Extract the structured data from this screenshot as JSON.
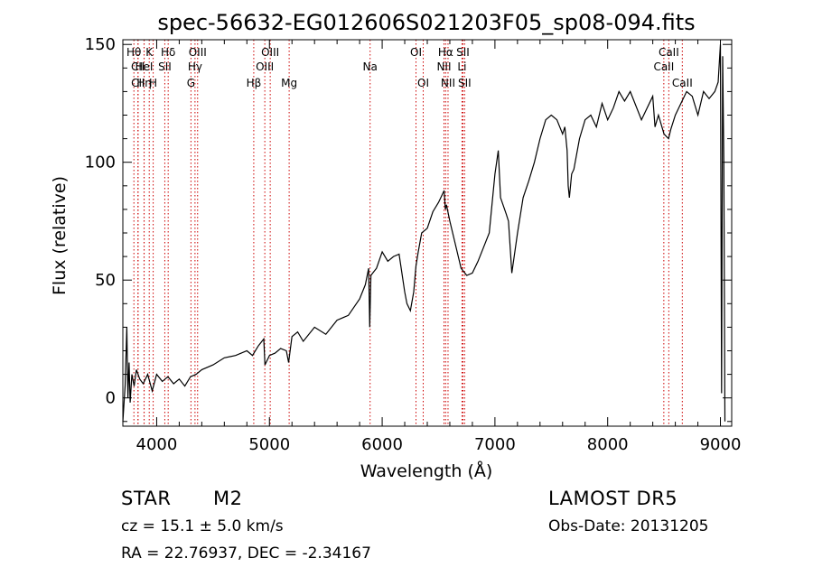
{
  "chart_data": {
    "type": "line",
    "title": "spec-56632-EG012606S021203F05_sp08-094.fits",
    "xlabel": "Wavelength (Å)",
    "ylabel": "Flux (relative)",
    "xlim": [
      3700,
      9100
    ],
    "ylim": [
      -12,
      152
    ],
    "xticks": [
      4000,
      5000,
      6000,
      7000,
      8000,
      9000
    ],
    "yticks": [
      0,
      50,
      100,
      150
    ],
    "grid": false,
    "line_color": "#000000",
    "marker_color": "#cc0000",
    "series": [
      {
        "x": [
          3700,
          3720,
          3735,
          3745,
          3755,
          3765,
          3780,
          3800,
          3820,
          3850,
          3880,
          3920,
          3960,
          4000,
          4050,
          4100,
          4150,
          4200,
          4250,
          4300,
          4350,
          4400,
          4500,
          4600,
          4700,
          4800,
          4850,
          4900,
          4950,
          4960,
          5000,
          5050,
          5100,
          5150,
          5170,
          5200,
          5250,
          5300,
          5400,
          5500,
          5600,
          5700,
          5800,
          5850,
          5880,
          5890,
          5900,
          5950,
          6000,
          6050,
          6100,
          6150,
          6200,
          6220,
          6250,
          6280,
          6300,
          6320,
          6350,
          6400,
          6450,
          6500,
          6550,
          6560,
          6570,
          6600,
          6650,
          6700,
          6750,
          6800,
          6850,
          6900,
          6950,
          7000,
          7030,
          7050,
          7100,
          7120,
          7150,
          7200,
          7250,
          7300,
          7350,
          7400,
          7450,
          7500,
          7550,
          7600,
          7620,
          7640,
          7650,
          7660,
          7680,
          7700,
          7750,
          7800,
          7850,
          7900,
          7950,
          8000,
          8050,
          8100,
          8150,
          8200,
          8300,
          8400,
          8420,
          8450,
          8500,
          8540,
          8560,
          8600,
          8650,
          8700,
          8750,
          8800,
          8850,
          8900,
          8950,
          8980,
          9000,
          9010,
          9020,
          9030,
          9040
        ],
        "y": [
          -10,
          5,
          30,
          0,
          15,
          -2,
          10,
          5,
          12,
          8,
          6,
          10,
          3,
          10,
          7,
          9,
          6,
          8,
          5,
          9,
          10,
          12,
          14,
          17,
          18,
          20,
          18,
          22,
          25,
          14,
          18,
          19,
          21,
          20,
          15,
          26,
          28,
          24,
          30,
          27,
          33,
          35,
          42,
          48,
          55,
          30,
          52,
          55,
          62,
          58,
          60,
          61,
          45,
          40,
          37,
          45,
          56,
          62,
          70,
          72,
          79,
          83,
          88,
          80,
          82,
          75,
          65,
          55,
          52,
          53,
          58,
          64,
          70,
          95,
          105,
          85,
          78,
          75,
          53,
          70,
          85,
          92,
          100,
          110,
          118,
          120,
          118,
          112,
          115,
          105,
          90,
          85,
          95,
          97,
          110,
          118,
          120,
          115,
          125,
          118,
          123,
          130,
          126,
          130,
          118,
          128,
          115,
          120,
          112,
          110,
          114,
          120,
          125,
          130,
          128,
          120,
          130,
          127,
          130,
          134,
          150,
          2,
          145,
          100,
          -10
        ]
      }
    ],
    "annotations": [
      {
        "wavelength": 3798,
        "row": 0,
        "label": "Hθ"
      },
      {
        "wavelength": 3834,
        "row": 1,
        "label": "CII"
      },
      {
        "wavelength": 3835,
        "row": 2,
        "label": "CII"
      },
      {
        "wavelength": 3889,
        "row": 2,
        "label": "Hη"
      },
      {
        "wavelength": 3934,
        "row": 0,
        "label": "K"
      },
      {
        "wavelength": 3888,
        "row": 1,
        "label": "HeI"
      },
      {
        "wavelength": 3969,
        "row": 2,
        "label": "H"
      },
      {
        "wavelength": 4102,
        "row": 0,
        "label": "Hδ"
      },
      {
        "wavelength": 4072,
        "row": 1,
        "label": "SII"
      },
      {
        "wavelength": 4340,
        "row": 1,
        "label": "Hγ"
      },
      {
        "wavelength": 4363,
        "row": 0,
        "label": "OIII"
      },
      {
        "wavelength": 4304,
        "row": 2,
        "label": "G"
      },
      {
        "wavelength": 4861,
        "row": 2,
        "label": "Hβ"
      },
      {
        "wavelength": 5007,
        "row": 0,
        "label": "OIII"
      },
      {
        "wavelength": 4959,
        "row": 1,
        "label": "OIII"
      },
      {
        "wavelength": 5175,
        "row": 2,
        "label": "Mg"
      },
      {
        "wavelength": 5893,
        "row": 1,
        "label": "Na"
      },
      {
        "wavelength": 6300,
        "row": 0,
        "label": "OI"
      },
      {
        "wavelength": 6364,
        "row": 2,
        "label": "OI"
      },
      {
        "wavelength": 6563,
        "row": 0,
        "label": "Hα"
      },
      {
        "wavelength": 6548,
        "row": 1,
        "label": "NII"
      },
      {
        "wavelength": 6584,
        "row": 2,
        "label": "NII"
      },
      {
        "wavelength": 6716,
        "row": 0,
        "label": "SII"
      },
      {
        "wavelength": 6708,
        "row": 1,
        "label": "Li"
      },
      {
        "wavelength": 6731,
        "row": 2,
        "label": "SII"
      },
      {
        "wavelength": 8498,
        "row": 1,
        "label": "CaII"
      },
      {
        "wavelength": 8542,
        "row": 0,
        "label": "CaII"
      },
      {
        "wavelength": 8662,
        "row": 2,
        "label": "CaII"
      }
    ]
  },
  "info": {
    "class_label": "STAR",
    "subclass": "M2",
    "survey": "LAMOST DR5",
    "redshift_line": "cz = 15.1 ± 5.0 km/s",
    "obs_date": "Obs-Date: 20131205",
    "coords": "RA =  22.76937, DEC =  -2.34167"
  }
}
